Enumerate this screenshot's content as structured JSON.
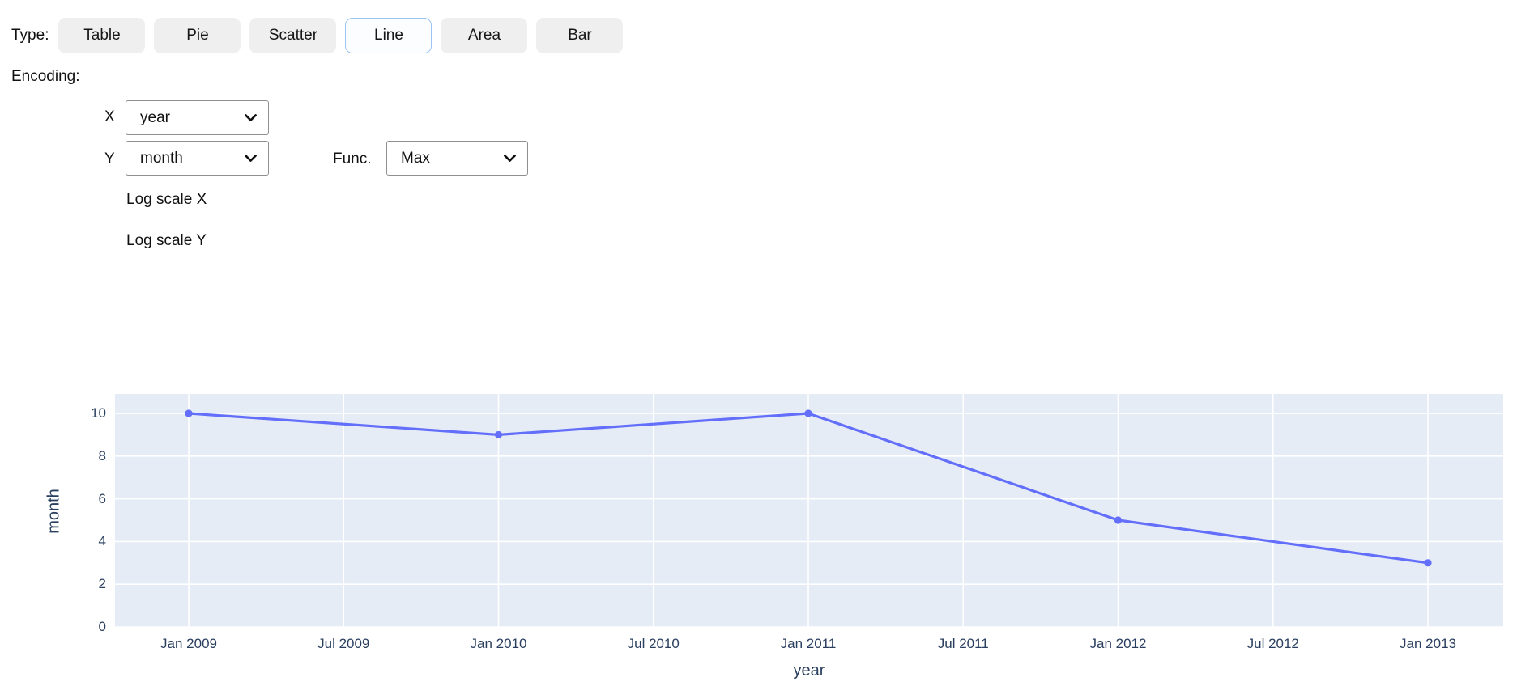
{
  "toolbar": {
    "type_label": "Type:",
    "buttons": [
      {
        "label": "Table",
        "selected": false
      },
      {
        "label": "Pie",
        "selected": false
      },
      {
        "label": "Scatter",
        "selected": false
      },
      {
        "label": "Line",
        "selected": true
      },
      {
        "label": "Area",
        "selected": false
      },
      {
        "label": "Bar",
        "selected": false
      }
    ]
  },
  "encoding": {
    "title": "Encoding:",
    "x_label": "X",
    "x_value": "year",
    "y_label": "Y",
    "y_value": "month",
    "func_label": "Func.",
    "func_value": "Max",
    "log_x_label": "Log scale X",
    "log_y_label": "Log scale Y"
  },
  "chart_data": {
    "type": "line",
    "points": [
      {
        "x": "Jan 2009",
        "y": 10
      },
      {
        "x": "Jan 2010",
        "y": 9
      },
      {
        "x": "Jan 2011",
        "y": 10
      },
      {
        "x": "Jan 2012",
        "y": 5
      },
      {
        "x": "Jan 2013",
        "y": 3
      }
    ],
    "x_axis_ticks": [
      "Jan 2009",
      "Jul 2009",
      "Jan 2010",
      "Jul 2010",
      "Jan 2011",
      "Jul 2011",
      "Jan 2012",
      "Jul 2012",
      "Jan 2013"
    ],
    "y_axis_ticks": [
      0,
      2,
      4,
      6,
      8,
      10
    ],
    "ylim": [
      0,
      10.91
    ],
    "xlabel": "year",
    "ylabel": "month",
    "grid": true,
    "legend": "none",
    "colors": {
      "line": "#636efa",
      "marker": "#636efa",
      "plot_background": "#e5ecf6",
      "grid_line": "#ffffff",
      "tick_text": "#2a3f5f",
      "selected_button_border": "#9cc3f2"
    }
  }
}
